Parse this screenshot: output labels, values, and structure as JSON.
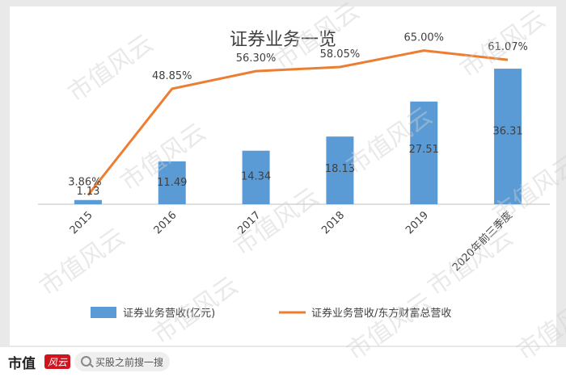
{
  "chart_data": {
    "type": "bar+line",
    "title": "证券业务一览",
    "categories": [
      "2015",
      "2016",
      "2017",
      "2018",
      "2019",
      "2020年前三季度"
    ],
    "series": [
      {
        "name": "证券业务营收(亿元)",
        "type": "bar",
        "values": [
          1.13,
          11.49,
          14.34,
          18.13,
          27.51,
          36.31
        ],
        "labels": [
          "1.13",
          "11.49",
          "14.34",
          "18.13",
          "27.51",
          "36.31"
        ],
        "color": "#5b9bd5"
      },
      {
        "name": "证券业务营收/东方财富总营收",
        "type": "line",
        "values": [
          3.86,
          48.85,
          56.3,
          58.05,
          65.0,
          61.07
        ],
        "labels": [
          "3.86%",
          "48.85%",
          "56.30%",
          "58.05%",
          "65.00%",
          "61.07%"
        ],
        "color": "#ed7d31"
      }
    ],
    "bar_axis_range": [
      0,
      40
    ],
    "line_axis_range": [
      0,
      70
    ],
    "legend_position": "bottom",
    "grid": false
  },
  "watermark": "市值风云",
  "footer": {
    "brand": "市值",
    "logo_text": "风云",
    "search_text": "买股之前搜一搜"
  }
}
